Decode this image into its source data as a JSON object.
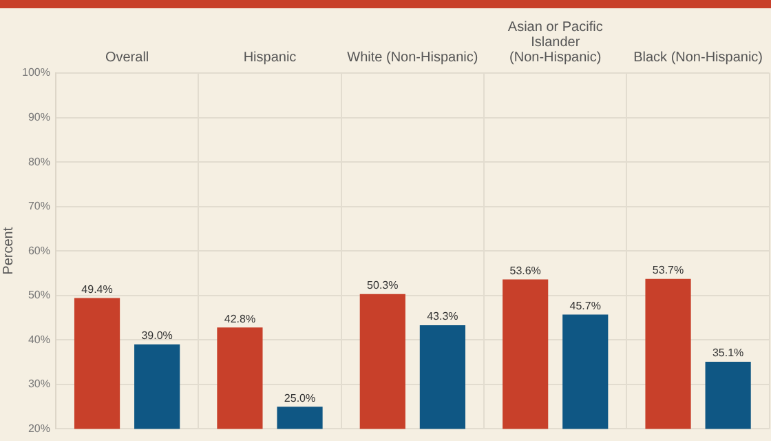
{
  "chart_data": {
    "type": "bar",
    "ylabel": "Percent",
    "categories": [
      "Overall",
      "Hispanic",
      "White (Non-Hispanic)",
      "Asian or Pacific Islander (Non-Hispanic)",
      "Black (Non-Hispanic)"
    ],
    "series": [
      {
        "color": "#c8402a",
        "values": [
          49.4,
          42.8,
          50.3,
          53.6,
          53.7
        ],
        "value_labels": [
          "49.4%",
          "42.8%",
          "50.3%",
          "53.6%",
          "53.7%"
        ]
      },
      {
        "color": "#0f5784",
        "values": [
          39.0,
          25.0,
          43.3,
          45.7,
          35.1
        ],
        "value_labels": [
          "39.0%",
          "25.0%",
          "43.3%",
          "45.7%",
          "35.1%"
        ]
      }
    ],
    "ylim": [
      20,
      100
    ],
    "yticks": [
      {
        "value": 20,
        "label": "20%"
      },
      {
        "value": 30,
        "label": "30%"
      },
      {
        "value": 40,
        "label": "40%"
      },
      {
        "value": 50,
        "label": "50%"
      },
      {
        "value": 60,
        "label": "60%"
      },
      {
        "value": 70,
        "label": "70%"
      },
      {
        "value": 80,
        "label": "80%"
      },
      {
        "value": 90,
        "label": "90%"
      },
      {
        "value": 100,
        "label": "100%"
      }
    ],
    "grid": true
  }
}
